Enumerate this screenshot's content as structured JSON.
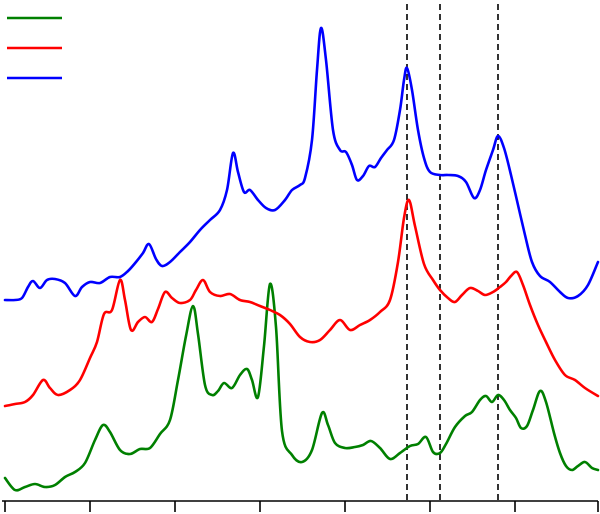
{
  "chart_data": {
    "type": "line",
    "title": "",
    "xlabel": "",
    "ylabel": "",
    "xlim": [
      0,
      600
    ],
    "ylim": [
      0,
      514
    ],
    "grid": false,
    "legend": {
      "placement": "top-left",
      "entries": [
        {
          "series": 0,
          "color": "#008000"
        },
        {
          "series": 1,
          "color": "#ff0000"
        },
        {
          "series": 2,
          "color": "#0000ff"
        }
      ]
    },
    "x_ticks": [
      5,
      90,
      175,
      260,
      345,
      430,
      515,
      598
    ],
    "reference_lines_x": [
      407,
      440,
      498
    ],
    "series": [
      {
        "color": "#008000",
        "points": [
          [
            5,
            478
          ],
          [
            15,
            490
          ],
          [
            25,
            487
          ],
          [
            35,
            484
          ],
          [
            45,
            487
          ],
          [
            55,
            485
          ],
          [
            65,
            477
          ],
          [
            75,
            472
          ],
          [
            85,
            463
          ],
          [
            95,
            440
          ],
          [
            103,
            425
          ],
          [
            110,
            432
          ],
          [
            120,
            450
          ],
          [
            130,
            454
          ],
          [
            140,
            449
          ],
          [
            150,
            448
          ],
          [
            160,
            434
          ],
          [
            170,
            420
          ],
          [
            178,
            380
          ],
          [
            186,
            336
          ],
          [
            193,
            306
          ],
          [
            198,
            334
          ],
          [
            205,
            385
          ],
          [
            212,
            395
          ],
          [
            218,
            391
          ],
          [
            224,
            383
          ],
          [
            232,
            388
          ],
          [
            240,
            375
          ],
          [
            247,
            369
          ],
          [
            252,
            380
          ],
          [
            258,
            397
          ],
          [
            264,
            346
          ],
          [
            270,
            284
          ],
          [
            276,
            327
          ],
          [
            282,
            431
          ],
          [
            292,
            455
          ],
          [
            302,
            462
          ],
          [
            312,
            450
          ],
          [
            322,
            413
          ],
          [
            328,
            425
          ],
          [
            335,
            443
          ],
          [
            345,
            448
          ],
          [
            355,
            447
          ],
          [
            363,
            445
          ],
          [
            371,
            441
          ],
          [
            380,
            448
          ],
          [
            390,
            459
          ],
          [
            400,
            453
          ],
          [
            410,
            446
          ],
          [
            418,
            444
          ],
          [
            426,
            437
          ],
          [
            433,
            452
          ],
          [
            440,
            453
          ],
          [
            446,
            444
          ],
          [
            455,
            427
          ],
          [
            465,
            416
          ],
          [
            472,
            412
          ],
          [
            480,
            400
          ],
          [
            486,
            396
          ],
          [
            492,
            402
          ],
          [
            498,
            395
          ],
          [
            504,
            400
          ],
          [
            510,
            410
          ],
          [
            516,
            418
          ],
          [
            521,
            428
          ],
          [
            527,
            426
          ],
          [
            533,
            410
          ],
          [
            540,
            391
          ],
          [
            546,
            402
          ],
          [
            554,
            433
          ],
          [
            560,
            453
          ],
          [
            566,
            466
          ],
          [
            572,
            470
          ],
          [
            578,
            466
          ],
          [
            585,
            462
          ],
          [
            592,
            468
          ],
          [
            598,
            470
          ]
        ]
      },
      {
        "color": "#ff0000",
        "points": [
          [
            5,
            406
          ],
          [
            15,
            404
          ],
          [
            25,
            402
          ],
          [
            33,
            395
          ],
          [
            43,
            380
          ],
          [
            50,
            388
          ],
          [
            58,
            395
          ],
          [
            70,
            390
          ],
          [
            80,
            380
          ],
          [
            90,
            358
          ],
          [
            97,
            342
          ],
          [
            104,
            314
          ],
          [
            112,
            310
          ],
          [
            120,
            280
          ],
          [
            125,
            300
          ],
          [
            131,
            330
          ],
          [
            138,
            322
          ],
          [
            145,
            317
          ],
          [
            152,
            322
          ],
          [
            158,
            309
          ],
          [
            165,
            292
          ],
          [
            172,
            298
          ],
          [
            180,
            303
          ],
          [
            190,
            300
          ],
          [
            196,
            290
          ],
          [
            203,
            280
          ],
          [
            210,
            292
          ],
          [
            220,
            296
          ],
          [
            230,
            294
          ],
          [
            240,
            300
          ],
          [
            250,
            302
          ],
          [
            260,
            306
          ],
          [
            270,
            310
          ],
          [
            280,
            315
          ],
          [
            290,
            324
          ],
          [
            300,
            337
          ],
          [
            310,
            342
          ],
          [
            320,
            340
          ],
          [
            330,
            330
          ],
          [
            340,
            320
          ],
          [
            350,
            330
          ],
          [
            360,
            325
          ],
          [
            370,
            320
          ],
          [
            380,
            312
          ],
          [
            390,
            300
          ],
          [
            398,
            262
          ],
          [
            404,
            218
          ],
          [
            409,
            200
          ],
          [
            415,
            226
          ],
          [
            424,
            264
          ],
          [
            433,
            280
          ],
          [
            440,
            290
          ],
          [
            448,
            298
          ],
          [
            455,
            302
          ],
          [
            462,
            295
          ],
          [
            470,
            288
          ],
          [
            478,
            291
          ],
          [
            485,
            295
          ],
          [
            493,
            292
          ],
          [
            500,
            287
          ],
          [
            506,
            282
          ],
          [
            511,
            276
          ],
          [
            517,
            272
          ],
          [
            523,
            285
          ],
          [
            530,
            305
          ],
          [
            538,
            325
          ],
          [
            546,
            342
          ],
          [
            555,
            360
          ],
          [
            565,
            375
          ],
          [
            575,
            380
          ],
          [
            585,
            388
          ],
          [
            598,
            396
          ]
        ]
      },
      {
        "color": "#0000ff",
        "points": [
          [
            5,
            300
          ],
          [
            15,
            300
          ],
          [
            22,
            298
          ],
          [
            28,
            287
          ],
          [
            33,
            281
          ],
          [
            40,
            288
          ],
          [
            47,
            280
          ],
          [
            55,
            279
          ],
          [
            65,
            283
          ],
          [
            75,
            296
          ],
          [
            82,
            287
          ],
          [
            90,
            282
          ],
          [
            100,
            283
          ],
          [
            110,
            277
          ],
          [
            120,
            277
          ],
          [
            128,
            271
          ],
          [
            136,
            262
          ],
          [
            143,
            253
          ],
          [
            149,
            244
          ],
          [
            156,
            259
          ],
          [
            162,
            266
          ],
          [
            170,
            262
          ],
          [
            180,
            252
          ],
          [
            190,
            242
          ],
          [
            200,
            230
          ],
          [
            210,
            220
          ],
          [
            220,
            210
          ],
          [
            227,
            190
          ],
          [
            233,
            153
          ],
          [
            238,
            172
          ],
          [
            244,
            192
          ],
          [
            250,
            190
          ],
          [
            258,
            200
          ],
          [
            266,
            208
          ],
          [
            275,
            210
          ],
          [
            285,
            200
          ],
          [
            292,
            190
          ],
          [
            300,
            185
          ],
          [
            305,
            178
          ],
          [
            312,
            140
          ],
          [
            317,
            70
          ],
          [
            321,
            28
          ],
          [
            326,
            60
          ],
          [
            333,
            130
          ],
          [
            340,
            150
          ],
          [
            346,
            152
          ],
          [
            352,
            165
          ],
          [
            357,
            180
          ],
          [
            363,
            176
          ],
          [
            369,
            166
          ],
          [
            375,
            167
          ],
          [
            381,
            158
          ],
          [
            387,
            150
          ],
          [
            394,
            140
          ],
          [
            400,
            110
          ],
          [
            404,
            80
          ],
          [
            407,
            68
          ],
          [
            412,
            90
          ],
          [
            418,
            130
          ],
          [
            424,
            158
          ],
          [
            430,
            172
          ],
          [
            440,
            175
          ],
          [
            448,
            175
          ],
          [
            458,
            176
          ],
          [
            466,
            182
          ],
          [
            474,
            198
          ],
          [
            480,
            190
          ],
          [
            486,
            170
          ],
          [
            493,
            150
          ],
          [
            498,
            136
          ],
          [
            504,
            148
          ],
          [
            511,
            175
          ],
          [
            518,
            205
          ],
          [
            525,
            235
          ],
          [
            532,
            262
          ],
          [
            540,
            276
          ],
          [
            550,
            282
          ],
          [
            560,
            292
          ],
          [
            568,
            298
          ],
          [
            578,
            296
          ],
          [
            588,
            285
          ],
          [
            598,
            262
          ]
        ]
      }
    ]
  }
}
